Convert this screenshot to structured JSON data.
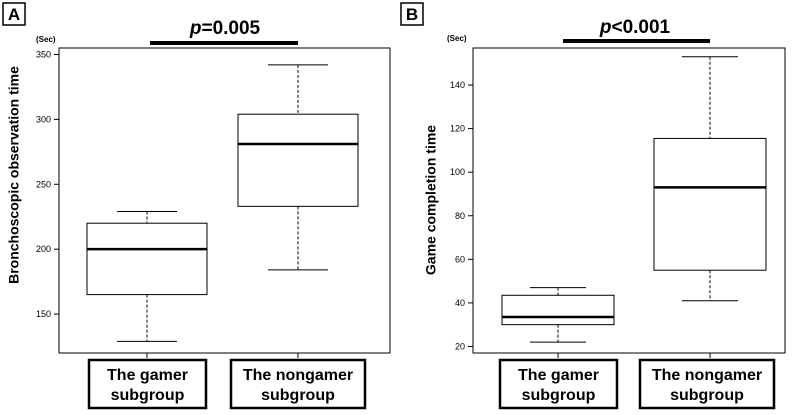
{
  "chart_data": [
    {
      "type": "box",
      "panel_label": "A",
      "significance": {
        "italic": "p",
        "rest": "=0.005"
      },
      "unit": "(Sec)",
      "ylabel": "Bronchoscopic observation time",
      "ylim": [
        120,
        355
      ],
      "yticks": [
        150,
        200,
        250,
        300,
        350
      ],
      "categories": [
        "The gamer subgroup",
        "The nongamer subgroup"
      ],
      "category_lines": [
        [
          "The gamer",
          "subgroup"
        ],
        [
          "The nongamer",
          "subgroup"
        ]
      ],
      "boxes": [
        {
          "whisker_low": 129,
          "q1": 165,
          "median": 200,
          "q3": 220,
          "whisker_high": 229
        },
        {
          "whisker_low": 184,
          "q1": 233,
          "median": 281,
          "q3": 304,
          "whisker_high": 342
        }
      ]
    },
    {
      "type": "box",
      "panel_label": "B",
      "significance": {
        "italic": "p",
        "rest": "<0.001"
      },
      "unit": "(Sec)",
      "ylabel": "Game completion  time",
      "ylim": [
        17,
        157
      ],
      "yticks": [
        20,
        40,
        60,
        80,
        100,
        120,
        140
      ],
      "categories": [
        "The gamer subgroup",
        "The nongamer subgroup"
      ],
      "category_lines": [
        [
          "The gamer",
          "subgroup"
        ],
        [
          "The nongamer",
          "subgroup"
        ]
      ],
      "boxes": [
        {
          "whisker_low": 22,
          "q1": 30,
          "median": 33.5,
          "q3": 43.5,
          "whisker_high": 47
        },
        {
          "whisker_low": 41,
          "q1": 55,
          "median": 93,
          "q3": 115.5,
          "whisker_high": 153
        }
      ]
    }
  ]
}
